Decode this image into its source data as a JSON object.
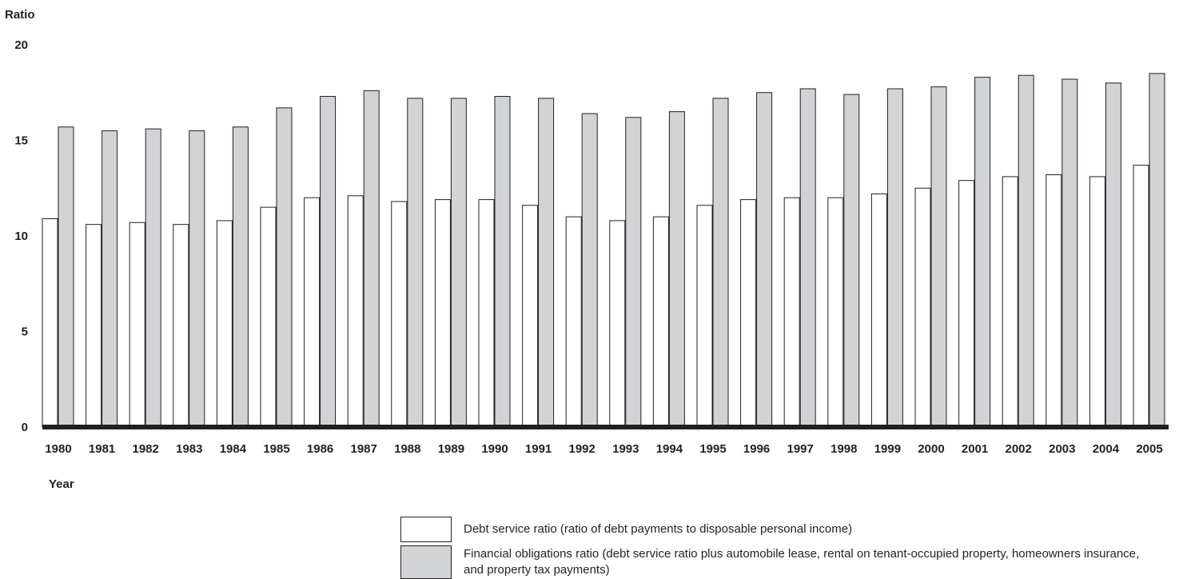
{
  "chart_data": {
    "type": "bar",
    "ylabel": "Ratio",
    "xlabel": "Year",
    "ylim": [
      0,
      20
    ],
    "yticks": [
      0,
      5,
      10,
      15,
      20
    ],
    "categories": [
      "1980",
      "1981",
      "1982",
      "1983",
      "1984",
      "1985",
      "1986",
      "1987",
      "1988",
      "1989",
      "1990",
      "1991",
      "1992",
      "1993",
      "1994",
      "1995",
      "1996",
      "1997",
      "1998",
      "1999",
      "2000",
      "2001",
      "2002",
      "2003",
      "2004",
      "2005"
    ],
    "series": [
      {
        "name": "Debt service ratio (ratio of debt payments to disposable personal income)",
        "color": "#ffffff",
        "values": [
          10.9,
          10.6,
          10.7,
          10.6,
          10.8,
          11.5,
          12.0,
          12.1,
          11.8,
          11.9,
          11.9,
          11.6,
          11.0,
          10.8,
          11.0,
          11.6,
          11.9,
          12.0,
          12.0,
          12.2,
          12.5,
          12.9,
          13.1,
          13.2,
          13.1,
          13.7
        ]
      },
      {
        "name": "Financial obligations ratio (debt service ratio plus automobile lease, rental on tenant-occupied property, homeowners insurance, and property tax payments)",
        "color": "#d1d3d4",
        "values": [
          15.7,
          15.5,
          15.6,
          15.5,
          15.7,
          16.7,
          17.3,
          17.6,
          17.2,
          17.2,
          17.3,
          17.2,
          16.4,
          16.2,
          16.5,
          17.2,
          17.5,
          17.7,
          17.4,
          17.7,
          17.8,
          18.3,
          18.4,
          18.2,
          18.0,
          18.5
        ]
      }
    ],
    "legend_position": "bottom"
  },
  "legend": {
    "items": [
      {
        "label": "Debt service ratio (ratio of debt payments to disposable personal income)",
        "color": "#ffffff"
      },
      {
        "label": "Financial obligations ratio (debt service ratio plus automobile lease, rental on tenant-occupied property, homeowners insurance, and property tax payments)",
        "color": "#d1d3d4"
      }
    ]
  }
}
